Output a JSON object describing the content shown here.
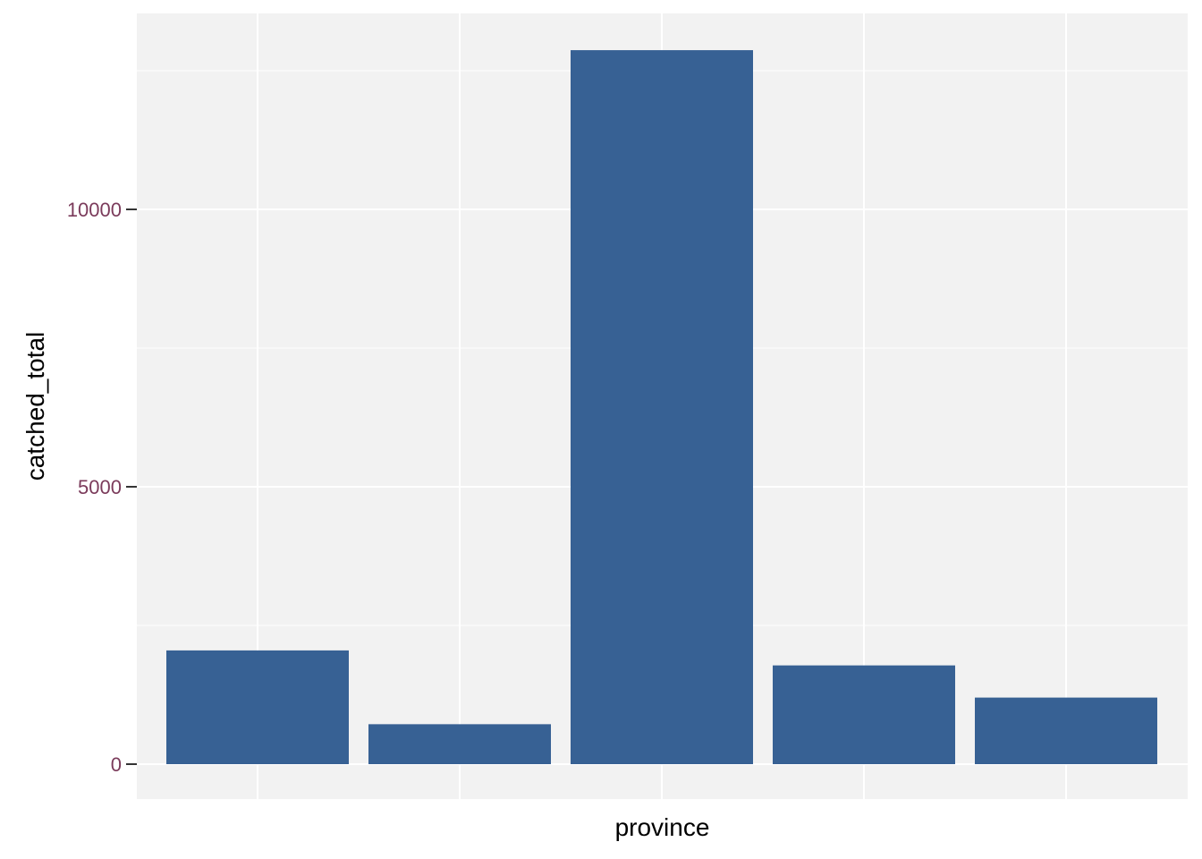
{
  "chart_data": {
    "type": "bar",
    "categories": [
      "",
      "",
      "",
      "",
      ""
    ],
    "values": [
      2050,
      720,
      12870,
      1780,
      1200
    ],
    "xlabel": "province",
    "ylabel": "catched_total",
    "ylim": [
      0,
      13500
    ],
    "yticks": [
      0,
      5000,
      10000
    ],
    "yticks_labels": [
      "0",
      "5000",
      "10000"
    ],
    "grid": true
  },
  "colors": {
    "bar": "#376194",
    "panel": "#f2f2f2",
    "grid": "#ffffff",
    "tick_label": "#7b3b5b",
    "tick_mark": "#333333"
  }
}
